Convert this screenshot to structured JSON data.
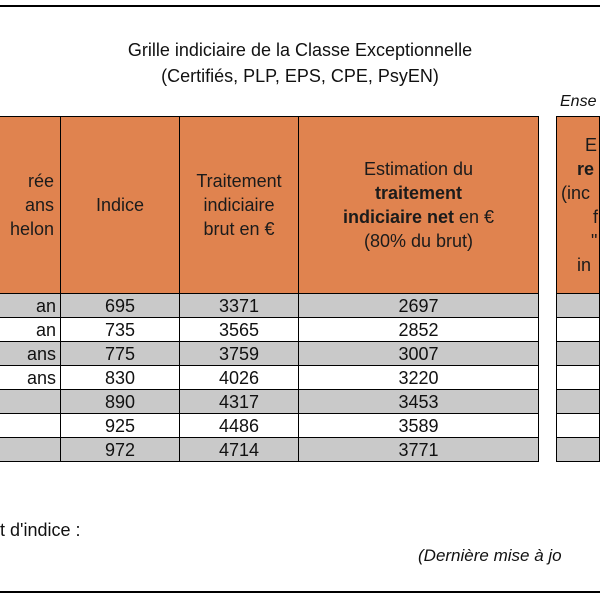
{
  "title_line1": "Grille indiciaire de la Classe Exceptionnelle",
  "title_line2": "(Certifiés, PLP, EPS, CPE, PsyEN)",
  "side_caption": "Ense",
  "headers": {
    "col0": [
      "rée",
      "ans",
      "helon"
    ],
    "col1": "Indice",
    "col2": [
      "Traitement",
      "indiciaire",
      "brut en €"
    ],
    "col3_line1": "Estimation du",
    "col3_bold1": "traitement",
    "col3_bold2": "indiciaire net",
    "col3_tail2": " en €",
    "col3_line3": "(80% du brut)",
    "side": [
      "E",
      "re",
      "(inc",
      "f",
      "\"",
      "in"
    ]
  },
  "rows": [
    {
      "duree": "an",
      "indice": "695",
      "brut": "3371",
      "net": "2697"
    },
    {
      "duree": "an",
      "indice": "735",
      "brut": "3565",
      "net": "2852"
    },
    {
      "duree": "ans",
      "indice": "775",
      "brut": "3759",
      "net": "3007"
    },
    {
      "duree": "ans",
      "indice": "830",
      "brut": "4026",
      "net": "3220"
    },
    {
      "duree": "",
      "indice": "890",
      "brut": "4317",
      "net": "3453"
    },
    {
      "duree": "",
      "indice": "925",
      "brut": "4486",
      "net": "3589"
    },
    {
      "duree": "",
      "indice": "972",
      "brut": "4714",
      "net": "3771"
    }
  ],
  "footer_left": "t d'indice :",
  "footer_right": "(Dernière mise à jo",
  "colors": {
    "header": "#e0834f",
    "stripe": "#c9c9c9"
  }
}
